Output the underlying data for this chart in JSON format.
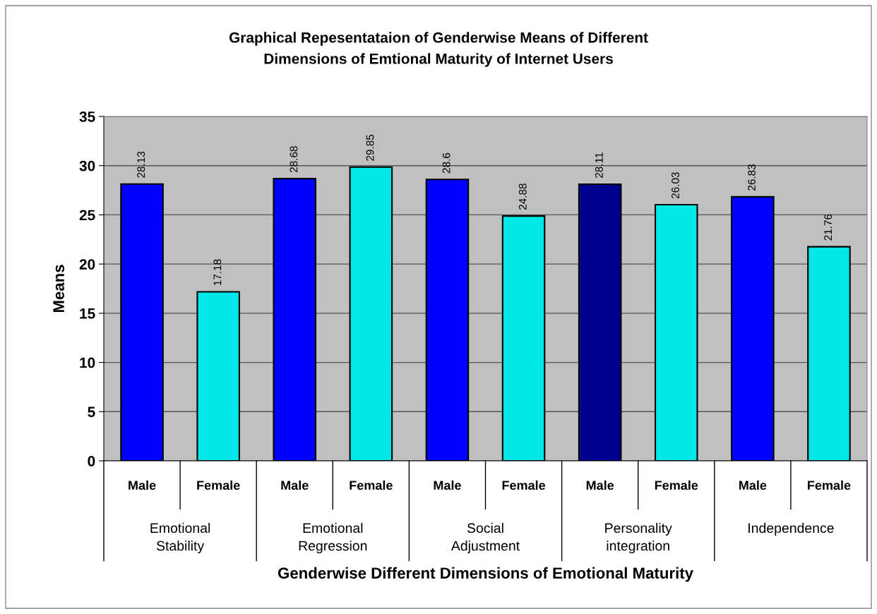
{
  "chart_data": {
    "type": "bar",
    "title": "Graphical Repesentataion of Genderwise Means of Different\nDimensions of Emtional Maturity of Internet Users",
    "xlabel": "Genderwise Different Dimensions of Emotional Maturity",
    "ylabel": "Means",
    "categories": [
      "Male",
      "Female",
      "Male",
      "Female",
      "Male",
      "Female",
      "Male",
      "Female",
      "Male",
      "Female"
    ],
    "values": [
      28.13,
      17.18,
      28.68,
      29.85,
      28.6,
      24.88,
      28.11,
      26.03,
      26.83,
      21.76
    ],
    "colors": [
      "#0000ff",
      "#00e8e8",
      "#0000ff",
      "#00e8e8",
      "#0000ff",
      "#00e8e8",
      "#000090",
      "#00e8e8",
      "#0000ff",
      "#00e8e8"
    ],
    "annotations": [
      "Emotional\nStability",
      "Emotional\nRegression",
      "Social\nAdjustment",
      "Personality\nintegration",
      "Independence"
    ],
    "ylim": [
      0,
      35
    ],
    "yticks": [
      0,
      5,
      10,
      15,
      20,
      25,
      30,
      35
    ],
    "grid": "y",
    "data_labels": true,
    "legend": false
  }
}
